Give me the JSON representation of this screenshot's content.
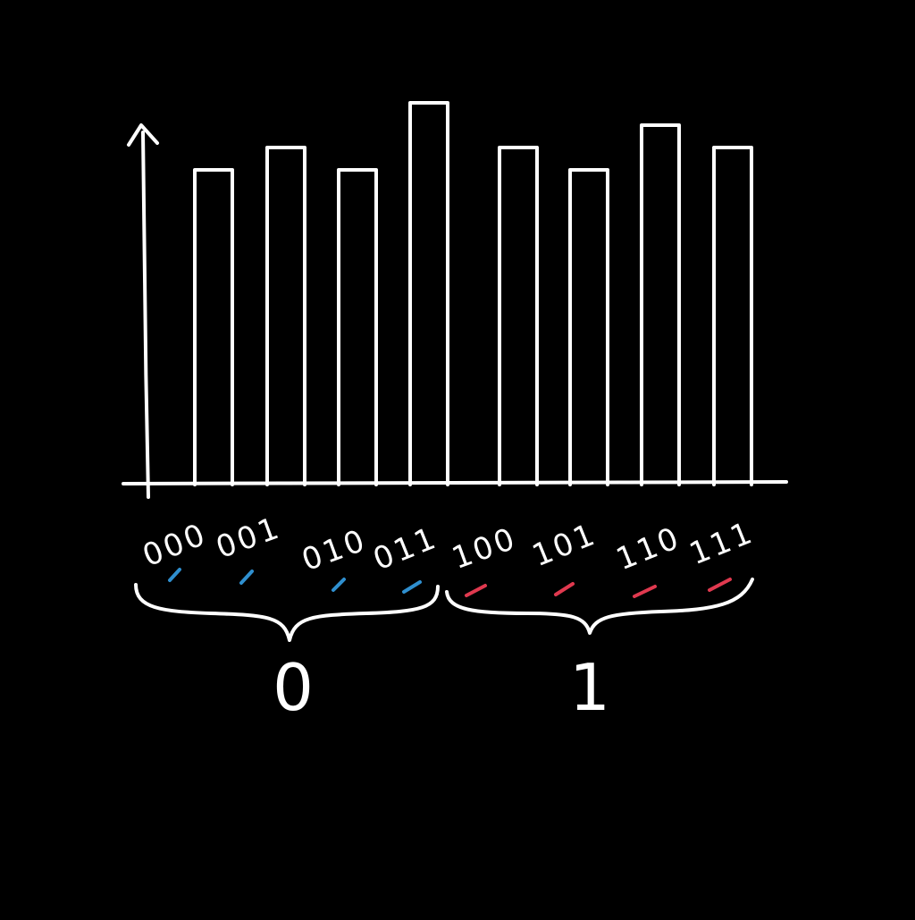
{
  "chart_data": {
    "type": "bar",
    "title": "",
    "xlabel": "",
    "ylabel": "",
    "grid": false,
    "categories": [
      "000",
      "001",
      "010",
      "011",
      "100",
      "101",
      "110",
      "111"
    ],
    "values": [
      7,
      7.5,
      7,
      8.5,
      7.5,
      7,
      8,
      7.5
    ],
    "ylim": [
      0,
      10
    ],
    "groups": [
      {
        "label": "0",
        "members": [
          "000",
          "001",
          "010",
          "011"
        ],
        "mark_color": "#2f8fcf"
      },
      {
        "label": "1",
        "members": [
          "100",
          "101",
          "110",
          "111"
        ],
        "mark_color": "#e0394f"
      }
    ],
    "colors": {
      "background": "#000000",
      "ink": "#ffffff"
    }
  }
}
